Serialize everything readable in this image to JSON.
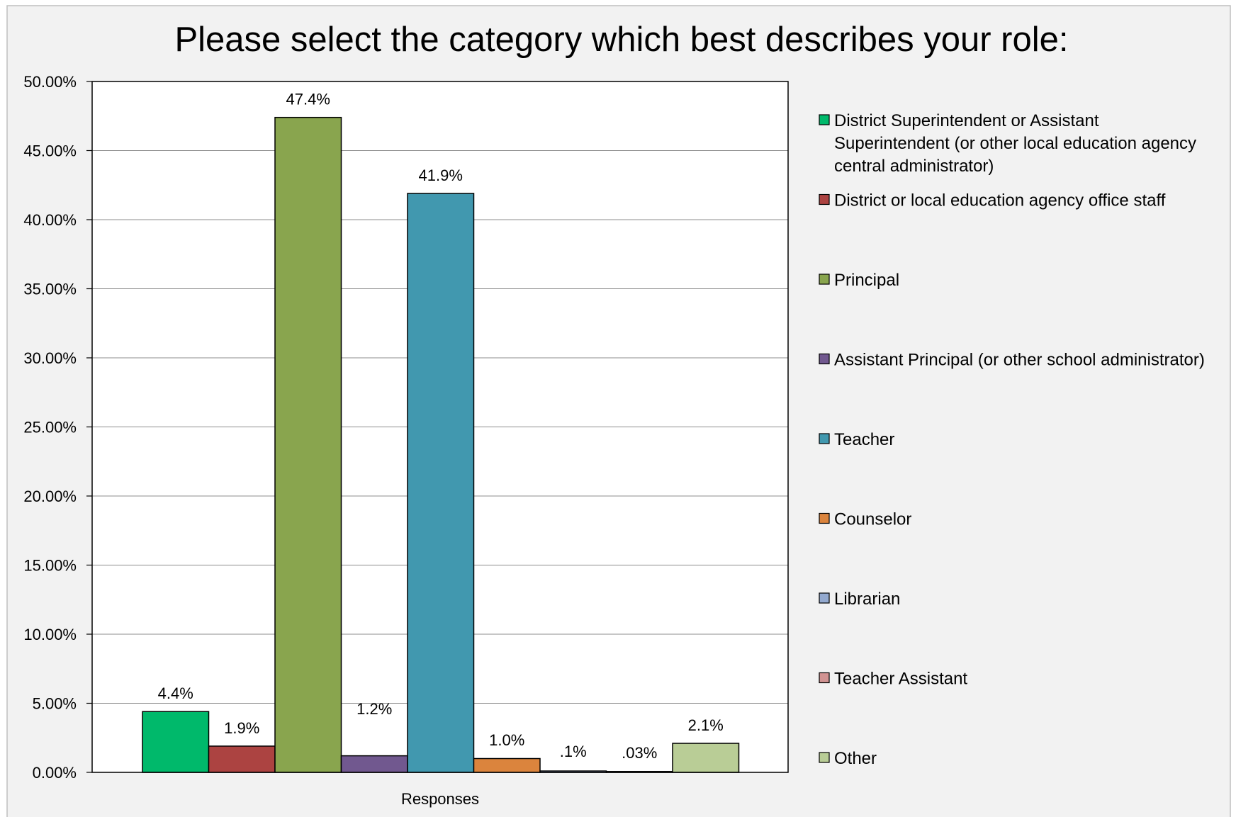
{
  "chart_data": {
    "type": "bar",
    "title": "Please select the category which best describes your role:",
    "xlabel": "",
    "ylabel": "",
    "categories": [
      "Responses"
    ],
    "category_label": "Responses",
    "ylim": [
      0,
      50
    ],
    "yticks": [
      "0.00%",
      "5.00%",
      "10.00%",
      "15.00%",
      "20.00%",
      "25.00%",
      "30.00%",
      "35.00%",
      "40.00%",
      "45.00%",
      "50.00%"
    ],
    "ytick_values": [
      0,
      5,
      10,
      15,
      20,
      25,
      30,
      35,
      40,
      45,
      50
    ],
    "grid": true,
    "legend_position": "right",
    "series": [
      {
        "name": "District Superintendent or Assistant Superintendent (or other local education agency central administrator)",
        "legend_lines": [
          "District Superintendent or Assistant",
          "Superintendent (or other local education agency",
          "central administrator)"
        ],
        "value": 4.4,
        "label": "4.4%",
        "color": "#00b96b"
      },
      {
        "name": "District or local education agency office staff",
        "legend_lines": [
          "District or local education agency office staff"
        ],
        "value": 1.9,
        "label": "1.9%",
        "color": "#ac4341"
      },
      {
        "name": "Principal",
        "legend_lines": [
          "Principal"
        ],
        "value": 47.4,
        "label": "47.4%",
        "color": "#89a54e"
      },
      {
        "name": "Assistant Principal (or other school administrator)",
        "legend_lines": [
          "Assistant Principal (or other school administrator)"
        ],
        "value": 1.2,
        "label": "1.2%",
        "color": "#71588f"
      },
      {
        "name": "Teacher",
        "legend_lines": [
          "Teacher"
        ],
        "value": 41.9,
        "label": "41.9%",
        "color": "#4198af"
      },
      {
        "name": "Counselor",
        "legend_lines": [
          "Counselor"
        ],
        "value": 1.0,
        "label": "1.0%",
        "color": "#db843d"
      },
      {
        "name": "Librarian",
        "legend_lines": [
          "Librarian"
        ],
        "value": 0.1,
        "label": ".1%",
        "color": "#93a9cf"
      },
      {
        "name": "Teacher Assistant",
        "legend_lines": [
          "Teacher Assistant"
        ],
        "value": 0.03,
        "label": ".03%",
        "color": "#d19392"
      },
      {
        "name": "Other",
        "legend_lines": [
          "Other"
        ],
        "value": 2.1,
        "label": "2.1%",
        "color": "#b9cd96"
      }
    ]
  }
}
